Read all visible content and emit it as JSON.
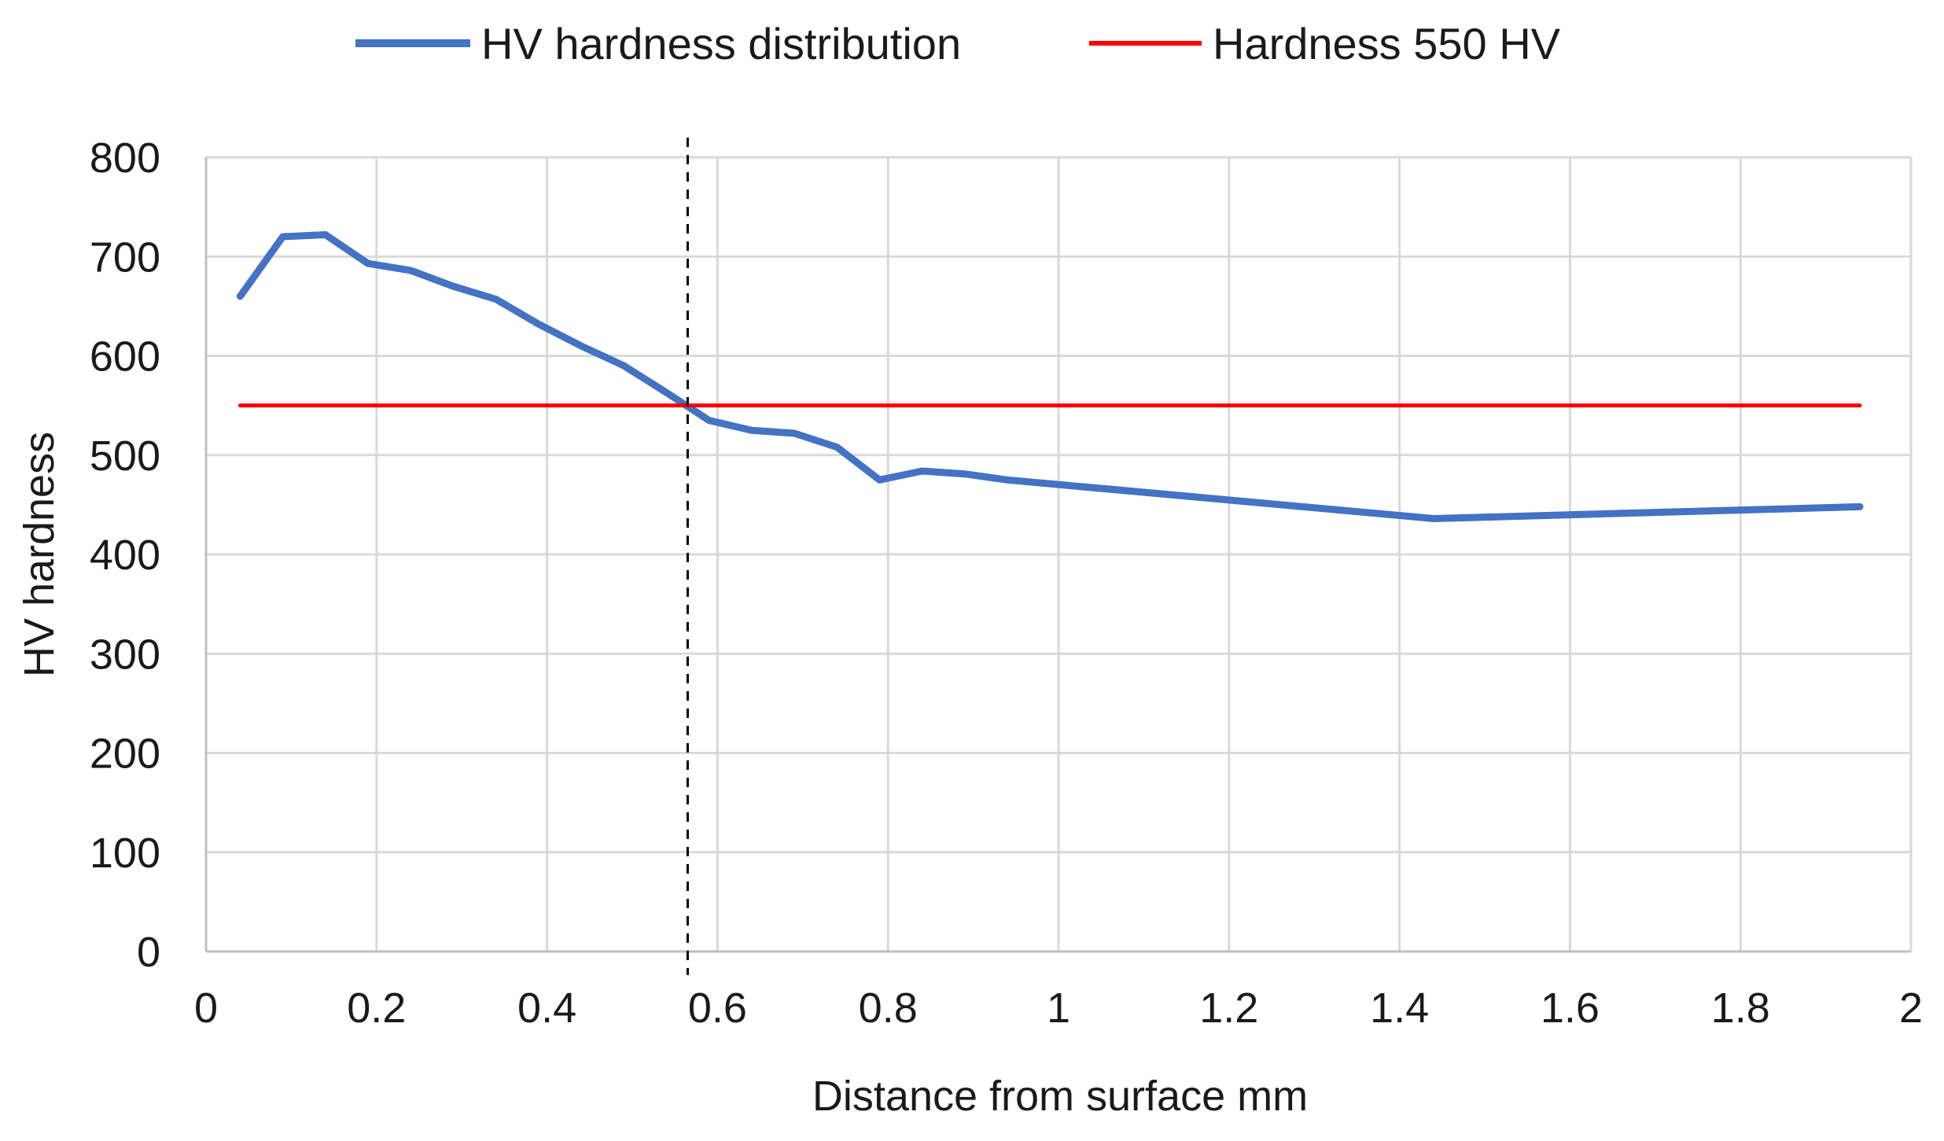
{
  "chart_data": {
    "type": "line",
    "xlabel": "Distance from surface mm",
    "ylabel": "HV hardness",
    "xlim": [
      0,
      2
    ],
    "ylim": [
      0,
      800
    ],
    "x_ticks": [
      0,
      0.2,
      0.4,
      0.6,
      0.8,
      1,
      1.2,
      1.4,
      1.6,
      1.8,
      2
    ],
    "x_tick_labels": [
      "0",
      "0.2",
      "0.4",
      "0.6",
      "0.8",
      "1",
      "1.2",
      "1.4",
      "1.6",
      "1.8",
      "2"
    ],
    "y_ticks": [
      0,
      100,
      200,
      300,
      400,
      500,
      600,
      700,
      800
    ],
    "y_tick_labels": [
      "0",
      "100",
      "200",
      "300",
      "400",
      "500",
      "600",
      "700",
      "800"
    ],
    "grid": true,
    "legend_position": "top-center",
    "series": [
      {
        "name": "HV hardness distribution",
        "color": "#4472c4",
        "x": [
          0.04,
          0.09,
          0.14,
          0.19,
          0.24,
          0.29,
          0.34,
          0.39,
          0.44,
          0.49,
          0.54,
          0.59,
          0.64,
          0.69,
          0.74,
          0.79,
          0.84,
          0.89,
          0.94,
          1.44,
          1.94
        ],
        "y": [
          660,
          720,
          722,
          693,
          686,
          670,
          657,
          632,
          610,
          590,
          563,
          535,
          525,
          522,
          508,
          475,
          484,
          481,
          475,
          436,
          448
        ]
      },
      {
        "name": "Hardness 550 HV",
        "color": "#ff0000",
        "x": [
          0.04,
          1.94
        ],
        "y": [
          550,
          550
        ]
      }
    ],
    "annotations": [
      {
        "type": "vertical-dashed-line",
        "x": 0.565,
        "color": "#000000"
      }
    ]
  }
}
